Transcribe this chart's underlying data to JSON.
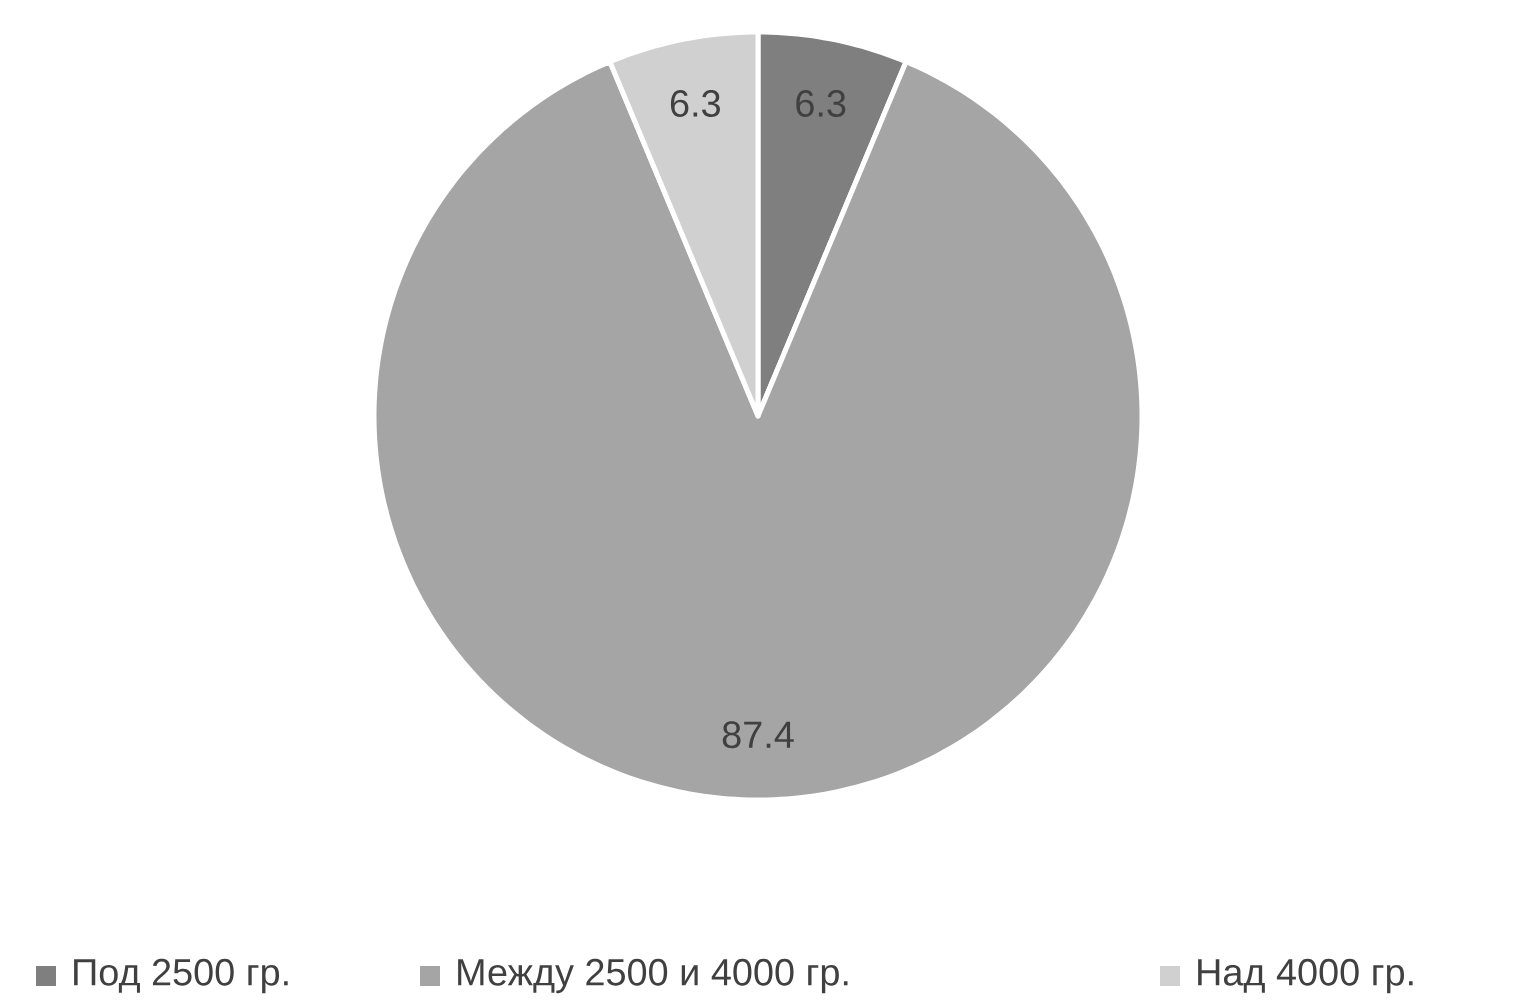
{
  "chart_data": {
    "type": "pie",
    "categories": [
      "Под 2500 гр.",
      "Между 2500 и 4000 гр.",
      "Над 4000 гр."
    ],
    "values": [
      6.3,
      87.4,
      6.3
    ],
    "colors": [
      "#7f7f7f",
      "#a5a5a5",
      "#d0d0d0"
    ],
    "data_labels": true,
    "legend": "bottom"
  }
}
